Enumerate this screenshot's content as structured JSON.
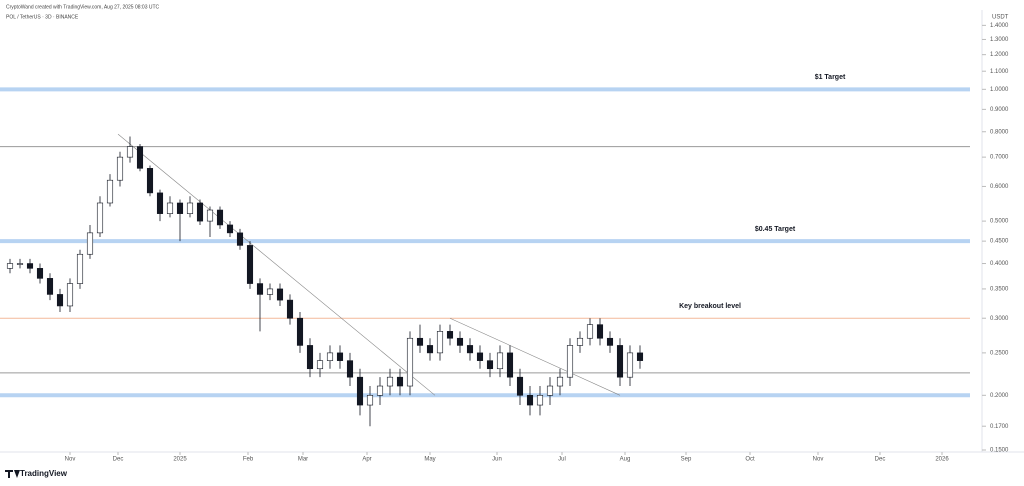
{
  "chart_data": {
    "type": "candlestick",
    "title": "POL / TetherUS · 3D · BINANCE",
    "subtitle": "CryptoWand created with TradingView.com, Aug 27, 2025 08:03 UTC",
    "y_axis_label": "USDT",
    "brand": "TradingView",
    "log_scale": true,
    "up_color": "#ffffff",
    "down_color": "#131722",
    "xlim": [
      -1,
      96
    ],
    "ylim": [
      0.15,
      1.44
    ],
    "xticks": [
      {
        "value": 6,
        "label": "Nov"
      },
      {
        "value": 10.8,
        "label": "Dec"
      },
      {
        "value": 17,
        "label": "2025"
      },
      {
        "value": 23.8,
        "label": "Feb"
      },
      {
        "value": 29.3,
        "label": "Mar"
      },
      {
        "value": 35.7,
        "label": "Apr"
      },
      {
        "value": 42,
        "label": "May"
      },
      {
        "value": 48.7,
        "label": "Jun"
      },
      {
        "value": 55.2,
        "label": "Jul"
      },
      {
        "value": 61.5,
        "label": "Aug"
      },
      {
        "value": 67.6,
        "label": "Sep"
      },
      {
        "value": 74,
        "label": "Oct"
      },
      {
        "value": 80.8,
        "label": "Nov"
      },
      {
        "value": 87,
        "label": "Dec"
      },
      {
        "value": 93.2,
        "label": "2026"
      }
    ],
    "yticks": [
      {
        "value": 1.4,
        "label": "1.4000"
      },
      {
        "value": 1.3,
        "label": "1.3000"
      },
      {
        "value": 1.2,
        "label": "1.2000"
      },
      {
        "value": 1.1,
        "label": "1.1000"
      },
      {
        "value": 1.0,
        "label": "1.0000"
      },
      {
        "value": 0.9,
        "label": "0.9000"
      },
      {
        "value": 0.8,
        "label": "0.8000"
      },
      {
        "value": 0.7,
        "label": "0.7000"
      },
      {
        "value": 0.6,
        "label": "0.6000"
      },
      {
        "value": 0.5,
        "label": "0.5000"
      },
      {
        "value": 0.45,
        "label": "0.4500"
      },
      {
        "value": 0.4,
        "label": "0.4000"
      },
      {
        "value": 0.35,
        "label": "0.3500"
      },
      {
        "value": 0.3,
        "label": "0.3000"
      },
      {
        "value": 0.25,
        "label": "0.2500"
      },
      {
        "value": 0.2,
        "label": "0.2000"
      },
      {
        "value": 0.17,
        "label": "0.1700"
      },
      {
        "value": 0.15,
        "label": "0.1500"
      }
    ],
    "open": [
      0.39,
      0.4,
      0.4,
      0.39,
      0.37,
      0.34,
      0.32,
      0.36,
      0.42,
      0.47,
      0.55,
      0.62,
      0.7,
      0.74,
      0.66,
      0.58,
      0.52,
      0.55,
      0.52,
      0.55,
      0.5,
      0.53,
      0.49,
      0.47,
      0.44,
      0.36,
      0.34,
      0.35,
      0.33,
      0.3,
      0.26,
      0.23,
      0.24,
      0.25,
      0.24,
      0.22,
      0.19,
      0.2,
      0.21,
      0.22,
      0.21,
      0.27,
      0.26,
      0.25,
      0.28,
      0.27,
      0.26,
      0.25,
      0.24,
      0.23,
      0.25,
      0.22,
      0.2,
      0.19,
      0.2,
      0.21,
      0.22,
      0.26,
      0.27,
      0.29,
      0.27,
      0.26,
      0.22,
      0.25
    ],
    "high": [
      0.41,
      0.41,
      0.41,
      0.4,
      0.38,
      0.35,
      0.37,
      0.43,
      0.49,
      0.57,
      0.64,
      0.72,
      0.78,
      0.75,
      0.67,
      0.59,
      0.57,
      0.56,
      0.57,
      0.56,
      0.54,
      0.54,
      0.5,
      0.48,
      0.45,
      0.37,
      0.36,
      0.36,
      0.34,
      0.31,
      0.27,
      0.25,
      0.26,
      0.26,
      0.25,
      0.23,
      0.21,
      0.22,
      0.23,
      0.23,
      0.28,
      0.29,
      0.27,
      0.29,
      0.29,
      0.28,
      0.27,
      0.26,
      0.25,
      0.26,
      0.26,
      0.23,
      0.21,
      0.21,
      0.22,
      0.23,
      0.27,
      0.28,
      0.3,
      0.3,
      0.28,
      0.27,
      0.26,
      0.26
    ],
    "low": [
      0.38,
      0.39,
      0.38,
      0.36,
      0.33,
      0.31,
      0.31,
      0.35,
      0.41,
      0.46,
      0.54,
      0.6,
      0.68,
      0.65,
      0.57,
      0.5,
      0.51,
      0.45,
      0.51,
      0.49,
      0.46,
      0.48,
      0.46,
      0.43,
      0.35,
      0.28,
      0.33,
      0.32,
      0.29,
      0.25,
      0.22,
      0.22,
      0.23,
      0.23,
      0.21,
      0.18,
      0.17,
      0.19,
      0.2,
      0.2,
      0.2,
      0.25,
      0.24,
      0.24,
      0.26,
      0.25,
      0.24,
      0.23,
      0.22,
      0.22,
      0.21,
      0.19,
      0.18,
      0.18,
      0.19,
      0.2,
      0.21,
      0.25,
      0.26,
      0.26,
      0.25,
      0.21,
      0.21,
      0.23
    ],
    "close": [
      0.4,
      0.4,
      0.39,
      0.37,
      0.34,
      0.32,
      0.36,
      0.42,
      0.47,
      0.55,
      0.62,
      0.7,
      0.74,
      0.66,
      0.58,
      0.52,
      0.55,
      0.52,
      0.55,
      0.5,
      0.53,
      0.49,
      0.47,
      0.44,
      0.36,
      0.34,
      0.35,
      0.33,
      0.3,
      0.26,
      0.23,
      0.24,
      0.25,
      0.24,
      0.22,
      0.19,
      0.2,
      0.21,
      0.22,
      0.21,
      0.27,
      0.26,
      0.25,
      0.28,
      0.27,
      0.26,
      0.25,
      0.24,
      0.23,
      0.25,
      0.22,
      0.2,
      0.19,
      0.2,
      0.21,
      0.22,
      0.26,
      0.27,
      0.29,
      0.27,
      0.26,
      0.22,
      0.25,
      0.24
    ],
    "levels": [
      {
        "value": 1.0,
        "color": "#b7d3f2",
        "label": "$1 Target",
        "label_x": 82
      },
      {
        "value": 0.74,
        "color": "#9a9a9a"
      },
      {
        "value": 0.45,
        "color": "#b7d3f2",
        "label": "$0.45 Target",
        "label_x": 76.5
      },
      {
        "value": 0.3,
        "color": "#f3b99a",
        "label": "Key breakout level",
        "label_x": 70
      },
      {
        "value": 0.225,
        "color": "#9a9a9a"
      },
      {
        "value": 0.2,
        "color": "#b7d3f2"
      }
    ],
    "trendlines": [
      {
        "x": [
          10.8,
          42.5
        ],
        "y": [
          0.79,
          0.2
        ]
      },
      {
        "x": [
          44,
          61
        ],
        "y": [
          0.3,
          0.2
        ]
      }
    ]
  }
}
